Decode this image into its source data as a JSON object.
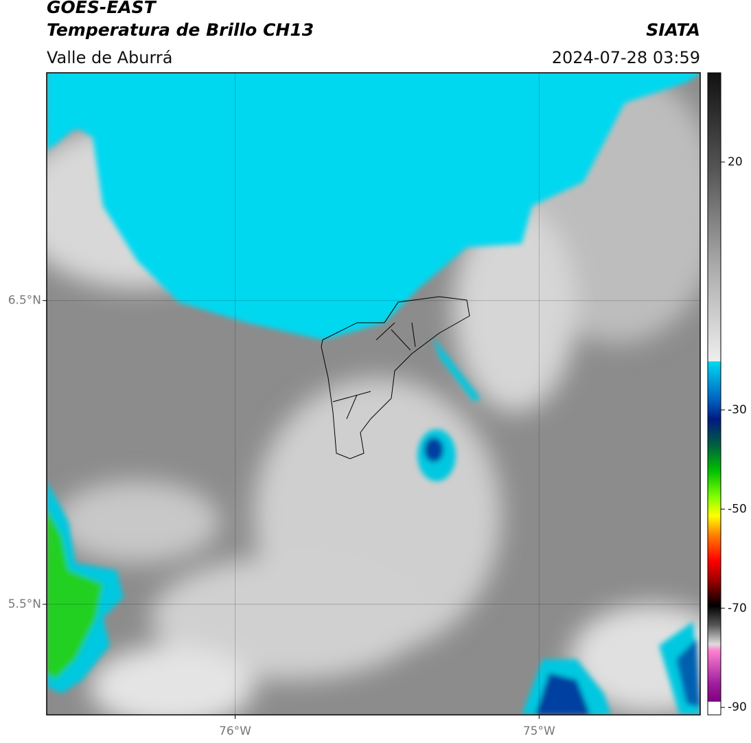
{
  "header": {
    "title": "GOES-EAST",
    "subtitle": "Temperatura de Brillo CH13",
    "region": "Valle de Aburrá",
    "source": "SIATA",
    "timestamp": "2024-07-28 03:59"
  },
  "map": {
    "xlim": [
      -76.62,
      -74.47
    ],
    "ylim": [
      5.136,
      7.25
    ],
    "xticks": [
      {
        "value": -76,
        "label": "76°W"
      },
      {
        "value": -75,
        "label": "75°W"
      }
    ],
    "yticks": [
      {
        "value": 6.5,
        "label": "6.5°N"
      },
      {
        "value": 5.5,
        "label": "5.5°N"
      }
    ]
  },
  "colorbar": {
    "lim": [
      -91.5,
      38
    ],
    "ticks": [
      20,
      -30,
      -50,
      -70,
      -90
    ]
  }
}
